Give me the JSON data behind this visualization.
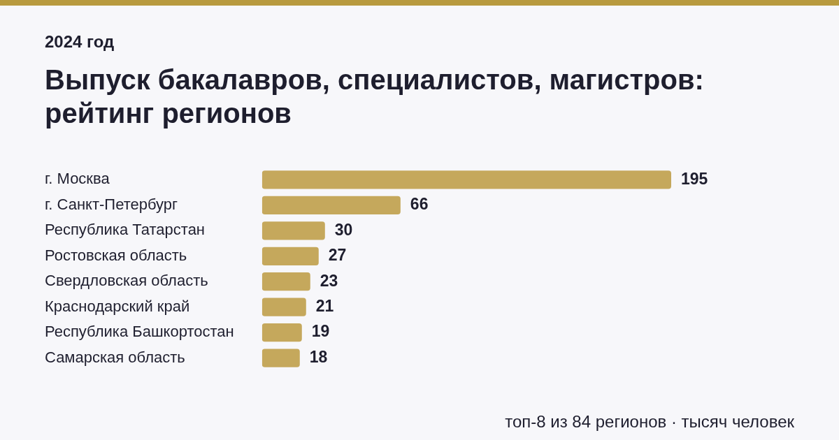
{
  "chart_data": {
    "type": "bar",
    "orientation": "horizontal",
    "subtitle": "2024 год",
    "title": "Выпуск бакалавров, специалистов, магистров: рейтинг регионов",
    "categories": [
      "г. Москва",
      "г. Санкт-Петербург",
      "Республика Татарстан",
      "Ростовская область",
      "Свердловская область",
      "Краснодарский край",
      "Республика Башкортостан",
      "Самарская область"
    ],
    "values": [
      195,
      66,
      30,
      27,
      23,
      21,
      19,
      18
    ],
    "color": "#c5a85c",
    "data_labels": true,
    "annotations": [
      "топ-8 из 84 регионов · тысяч человек"
    ]
  }
}
